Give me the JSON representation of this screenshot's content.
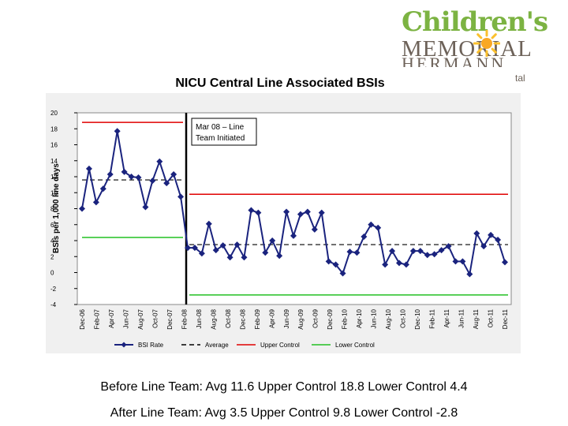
{
  "logo": {
    "line1": "Children's",
    "line2": "MEMORIAL",
    "line3": "HERMANN",
    "line4": "tal"
  },
  "captions": {
    "before": "Before Line Team: Avg 11.6 Upper Control 18.8  Lower Control 4.4",
    "after": "After Line Team:  Avg 3.5  Upper Control 9.8  Lower Control -2.8"
  },
  "colors": {
    "series": "#1a237e",
    "average": "#000000",
    "upper": "#e00000",
    "lower": "#22c022",
    "plot_bg": "#ffffff",
    "panel_bg": "#f0f0f0"
  },
  "chart_data": {
    "type": "line",
    "title": "NICU Central Line Associated BSIs",
    "xlabel": "",
    "ylabel": "BSIs per 1,000 line days",
    "ylim": [
      -4,
      20
    ],
    "y_ticks": [
      -4,
      -2,
      0,
      2,
      4,
      6,
      8,
      10,
      12,
      14,
      16,
      18,
      20
    ],
    "x_tick_labels": [
      "Dec-06",
      "Feb-07",
      "Apr-07",
      "Jun-07",
      "Aug-07",
      "Oct-07",
      "Dec-07",
      "Feb-08",
      "Jun-08",
      "Aug-08",
      "Oct-08",
      "Dec-08",
      "Feb-09",
      "Apr-09",
      "Jun-09",
      "Aug-09",
      "Oct-09",
      "Dec-09",
      "Feb-10",
      "Apr-10",
      "Jun-10",
      "Aug-10",
      "Oct-10",
      "Dec-10",
      "Feb-11",
      "Apr-11",
      "Jun-11",
      "Aug-11",
      "Oct-11",
      "Dec-11"
    ],
    "annotation": "Mar 08 – Line Team Initiated",
    "series": [
      {
        "name": "BSI Rate",
        "values": [
          8.0,
          13.0,
          8.8,
          10.5,
          12.3,
          17.7,
          12.6,
          12.0,
          11.9,
          8.2,
          11.5,
          13.9,
          11.2,
          12.3,
          9.5,
          3.1,
          3.1,
          2.4,
          6.1,
          2.8,
          3.4,
          1.9,
          3.5,
          1.9,
          7.8,
          7.5,
          2.5,
          4.0,
          2.1,
          7.6,
          4.6,
          7.3,
          7.6,
          5.4,
          7.5,
          1.4,
          1.0,
          -0.1,
          2.6,
          2.5,
          4.5,
          6.0,
          5.6,
          1.0,
          2.7,
          1.2,
          1.0,
          2.7,
          2.7,
          2.2,
          2.3,
          2.8,
          3.3,
          1.4,
          1.4,
          -0.2,
          4.9,
          3.3,
          4.7,
          4.1,
          1.3
        ]
      },
      {
        "name": "Average",
        "segments": [
          {
            "from": 0,
            "to": 15,
            "value": 11.6
          },
          {
            "from": 15,
            "to": 60,
            "value": 3.5
          }
        ]
      },
      {
        "name": "Upper Control",
        "segments": [
          {
            "from": 0,
            "to": 15,
            "value": 18.8
          },
          {
            "from": 15,
            "to": 60,
            "value": 9.8
          }
        ]
      },
      {
        "name": "Lower Control",
        "segments": [
          {
            "from": 0,
            "to": 15,
            "value": 4.4
          },
          {
            "from": 15,
            "to": 60,
            "value": -2.8
          }
        ]
      }
    ],
    "legend_position": "bottom",
    "grid": false
  }
}
